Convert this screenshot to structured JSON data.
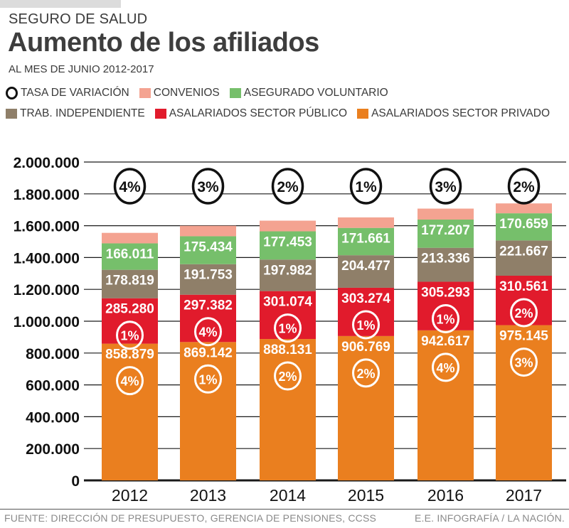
{
  "header": {
    "kicker": "SEGURO DE SALUD",
    "title": "Aumento de los afiliados",
    "subtitle": "AL MES DE JUNIO 2012-2017"
  },
  "legend": {
    "rate": {
      "label": "TASA DE VARIACIÓN",
      "icon": "circle-outline-icon"
    },
    "items": [
      {
        "key": "convenios",
        "label": "CONVENIOS",
        "color": "#f4a391"
      },
      {
        "key": "voluntario",
        "label": "ASEGURADO VOLUNTARIO",
        "color": "#76bf6b"
      },
      {
        "key": "independiente",
        "label": "TRAB. INDEPENDIENTE",
        "color": "#8f7f69"
      },
      {
        "key": "publico",
        "label": "ASALARIADOS SECTOR PÚBLICO",
        "color": "#e11b2c"
      },
      {
        "key": "privado",
        "label": "ASALARIADOS SECTOR PRIVADO",
        "color": "#ea7f1f"
      }
    ]
  },
  "chart_data": {
    "type": "bar",
    "stacked": true,
    "title": "Aumento de los afiliados",
    "subtitle": "AL MES DE JUNIO 2012-2017",
    "xlabel": "",
    "ylabel": "",
    "categories": [
      "2012",
      "2013",
      "2014",
      "2015",
      "2016",
      "2017"
    ],
    "ylim": [
      0,
      2000000
    ],
    "yticks": [
      0,
      200000,
      400000,
      600000,
      800000,
      1000000,
      1200000,
      1400000,
      1600000,
      1800000,
      2000000
    ],
    "ytick_labels": [
      "0",
      "200.000",
      "400.000",
      "600.000",
      "800.000",
      "1.000.000",
      "1.200.000",
      "1.400.000",
      "1.600.000",
      "1.800.000",
      "2.000.000"
    ],
    "grid": true,
    "legend_position": "top",
    "series": [
      {
        "name": "ASALARIADOS SECTOR PRIVADO",
        "color": "#ea7f1f",
        "values": [
          858879,
          869142,
          888131,
          906769,
          942617,
          975145
        ],
        "labels": [
          "858.879",
          "869.142",
          "888.131",
          "906.769",
          "942.617",
          "975.145"
        ],
        "rates": [
          "4%",
          "1%",
          "2%",
          "2%",
          "4%",
          "3%"
        ]
      },
      {
        "name": "ASALARIADOS SECTOR PÚBLICO",
        "color": "#e11b2c",
        "values": [
          285280,
          297382,
          301074,
          303274,
          305293,
          310561
        ],
        "labels": [
          "285.280",
          "297.382",
          "301.074",
          "303.274",
          "305.293",
          "310.561"
        ],
        "rates": [
          "1%",
          "4%",
          "1%",
          "1%",
          "1%",
          "2%"
        ]
      },
      {
        "name": "TRAB. INDEPENDIENTE",
        "color": "#8f7f69",
        "values": [
          178819,
          191753,
          197982,
          204477,
          213336,
          221667
        ],
        "labels": [
          "178.819",
          "191.753",
          "197.982",
          "204.477",
          "213.336",
          "221.667"
        ]
      },
      {
        "name": "ASEGURADO VOLUNTARIO",
        "color": "#76bf6b",
        "values": [
          166011,
          175434,
          177453,
          171661,
          177207,
          170659
        ],
        "labels": [
          "166.011",
          "175.434",
          "177.453",
          "171.661",
          "177.207",
          "170.659"
        ]
      },
      {
        "name": "CONVENIOS",
        "color": "#f4a391",
        "values": [
          66000,
          66000,
          67000,
          66000,
          69000,
          62000
        ],
        "labels": null,
        "estimated": true
      }
    ],
    "total_rates": [
      "4%",
      "3%",
      "2%",
      "1%",
      "3%",
      "2%"
    ]
  },
  "footer": {
    "source": "FUENTE: DIRECCIÓN DE PRESUPUESTO, GERENCIA DE PENSIONES, CCSS",
    "credit": "E.E. INFOGRAFÍA / LA NACIÓN."
  }
}
